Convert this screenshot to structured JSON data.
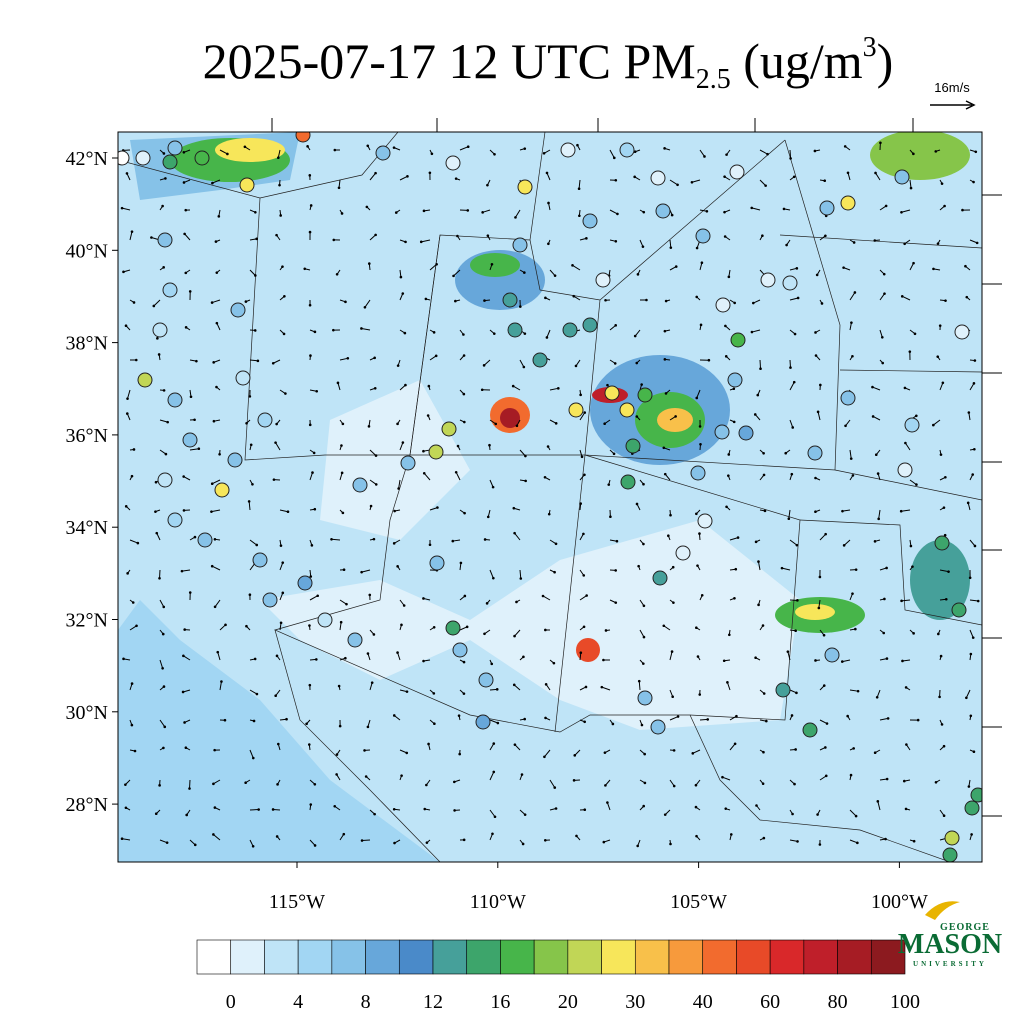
{
  "title": {
    "text": "2025-07-17 12 UTC PM",
    "subscript": "2.5",
    "units_open": " (ug/m",
    "superscript": "3",
    "units_close": ")"
  },
  "wind_reference": "16m/s",
  "latitude_labels": [
    "42°N",
    "40°N",
    "38°N",
    "36°N",
    "34°N",
    "32°N",
    "30°N",
    "28°N"
  ],
  "longitude_labels": [
    "115°W",
    "110°W",
    "105°W",
    "100°W"
  ],
  "colorbar": {
    "labels": [
      0,
      4,
      8,
      12,
      16,
      20,
      30,
      40,
      60,
      80,
      100
    ],
    "colors": [
      "#ffffff",
      "#dff1fb",
      "#bfe4f7",
      "#a2d6f3",
      "#86c2e8",
      "#67a7da",
      "#4a8ac9",
      "#46a09a",
      "#3da56b",
      "#47b54a",
      "#86c54a",
      "#c1d656",
      "#f7e65a",
      "#f8c04a",
      "#f79a3c",
      "#f26b2e",
      "#e84a28",
      "#d9282a",
      "#bf1f2a",
      "#a61c24",
      "#8c1a1f"
    ]
  },
  "logo": {
    "top": "GEORGE",
    "main": "MASON",
    "bottom": "UNIVERSITY"
  }
}
